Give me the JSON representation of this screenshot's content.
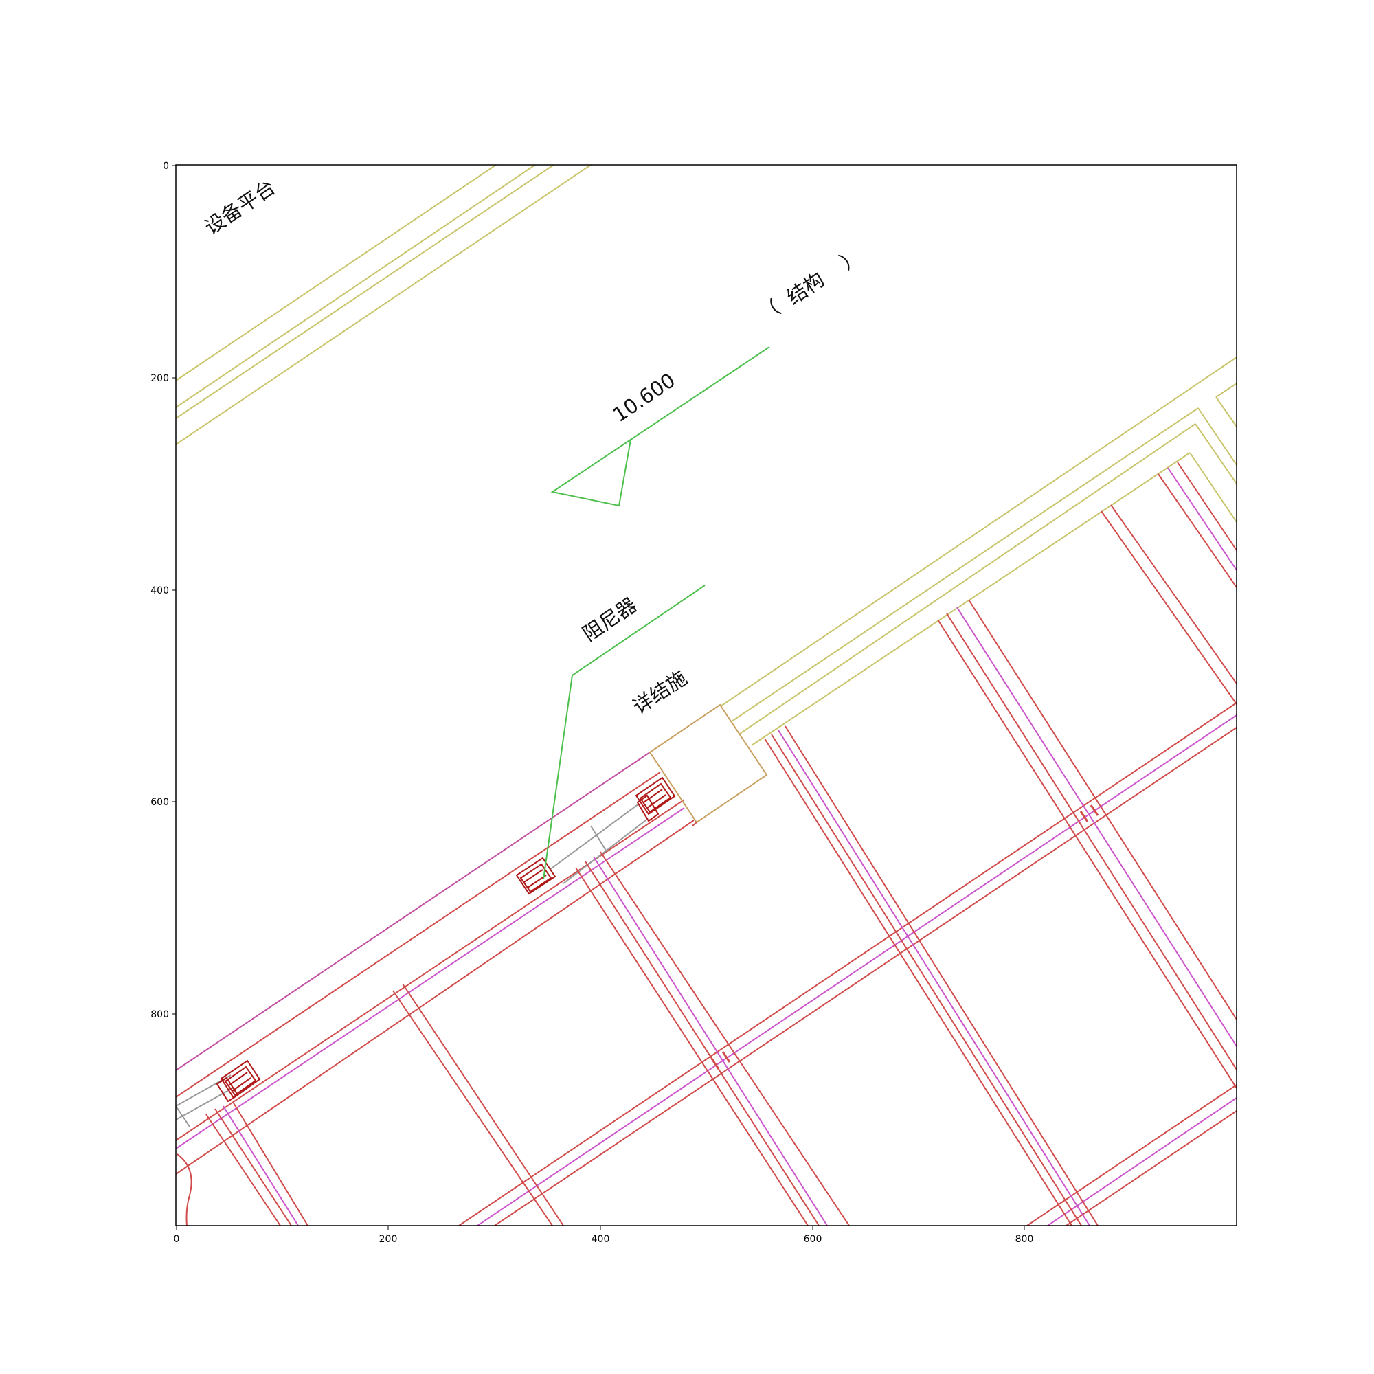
{
  "plot": {
    "x_ticks": [
      "0",
      "200",
      "400",
      "600",
      "800"
    ],
    "y_ticks": [
      "0",
      "200",
      "400",
      "600",
      "800"
    ],
    "x_range": [
      0,
      1000
    ],
    "y_range": [
      0,
      1000
    ],
    "y_inverted": true
  },
  "annotations": {
    "equipment_platform": "设备平台",
    "elevation": "10.600",
    "structure_open_paren": "（",
    "structure": "结构",
    "structure_close_paren": "）",
    "damper": "阻尼器",
    "see_structural": "详结施"
  },
  "colors": {
    "wall": "#c9c46a",
    "beam": "#d24b4b",
    "axis": "#cc55cc",
    "leader": "#4cbf4c",
    "damper": "#b01818",
    "rod": "#999999",
    "pier": "#c8a060"
  }
}
